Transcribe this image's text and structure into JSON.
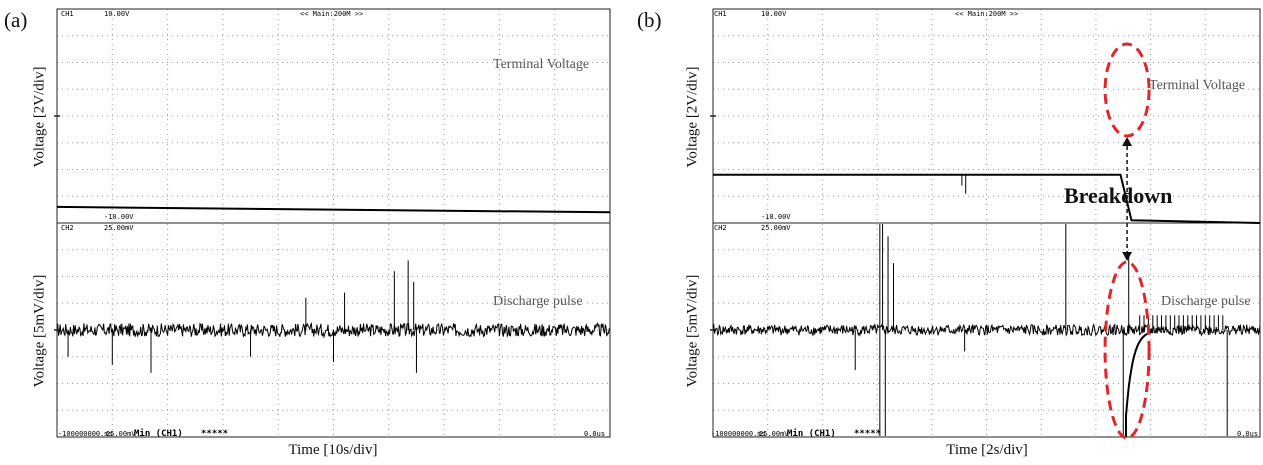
{
  "panels": [
    {
      "letter": "(a)",
      "top_ylabel": "Voltage [2V/div]",
      "bottom_ylabel": "Voltage [5mV/div]",
      "xlabel": "Time [10s/div]",
      "ch1_label": "CH1",
      "ch1_max": "10.00V",
      "ch1_min": "-10.00V",
      "ch2_label": "CH2",
      "ch2_max": "25.00mV",
      "mode_text": "<< Main:200M >>",
      "status_left": "-100000000.ms",
      "status_left_mid": "25.00mV",
      "status_mid": "Min (CH1)",
      "status_stars": "*****",
      "status_right": "0.0us",
      "top_trace_label": "Terminal Voltage",
      "bottom_trace_label": "Discharge pulse"
    },
    {
      "letter": "(b)",
      "top_ylabel": "Voltage [2V/div]",
      "bottom_ylabel": "Voltage [5mV/div]",
      "xlabel": "Time [2s/div]",
      "ch1_label": "CH1",
      "ch1_max": "10.00V",
      "ch1_min": "-10.00V",
      "ch2_label": "CH2",
      "ch2_max": "25.00mV",
      "mode_text": "<< Main:200M >>",
      "status_left": "-100000000.ms",
      "status_left_mid": "25.00mV",
      "status_mid": "Min (CH1)",
      "status_stars": "*****",
      "status_right": "0.0us",
      "top_trace_label": "Terminal Voltage",
      "bottom_trace_label": "Discharge pulse",
      "annotation": "Breakdown"
    }
  ],
  "colors": {
    "trace": "#000000",
    "grid": "#9a9a9a",
    "annotation": "#e0262b"
  },
  "chart_data": [
    {
      "type": "line",
      "panel": "a",
      "grid": true,
      "divisions": {
        "x": 10,
        "y_top": 8,
        "y_bottom": 8
      },
      "series": [
        {
          "channel": "top",
          "x": [
            0,
            10
          ],
          "values": [
            -3.4,
            -3.6
          ]
        },
        {
          "channel": "bottom",
          "baseline": 0,
          "noise": 0.25,
          "spikes_up": [
            [
              4.5,
              1.2
            ],
            [
              5.2,
              1.4
            ],
            [
              6.1,
              2.2
            ],
            [
              6.35,
              2.6
            ],
            [
              6.45,
              1.8
            ]
          ],
          "spikes_down": [
            [
              0.2,
              -1.0
            ],
            [
              1.0,
              -1.3
            ],
            [
              1.7,
              -1.6
            ],
            [
              3.5,
              -1.0
            ],
            [
              5.0,
              -1.2
            ],
            [
              6.5,
              -1.6
            ]
          ]
        }
      ]
    },
    {
      "type": "line",
      "panel": "b",
      "grid": true,
      "divisions": {
        "x": 10,
        "y_top": 8,
        "y_bottom": 8
      },
      "series": [
        {
          "channel": "top",
          "x": [
            0,
            4.5,
            7.45,
            7.65,
            10
          ],
          "values": [
            -2.2,
            -2.2,
            -2.2,
            -3.9,
            -4.0
          ]
        },
        {
          "channel": "bottom",
          "baseline": 0,
          "noise": 0.2,
          "spikes_up": [
            [
              3.05,
              4.0
            ],
            [
              3.1,
              4.0
            ],
            [
              3.2,
              3.5
            ],
            [
              3.3,
              2.5
            ],
            [
              6.45,
              4.0
            ],
            [
              7.6,
              2.8
            ]
          ],
          "spikes_down": [
            [
              3.05,
              -4.0
            ],
            [
              3.15,
              -4.0
            ],
            [
              2.6,
              -1.5
            ],
            [
              4.6,
              -0.8
            ],
            [
              7.5,
              -4.0
            ],
            [
              9.4,
              -4.0
            ]
          ]
        }
      ]
    }
  ]
}
